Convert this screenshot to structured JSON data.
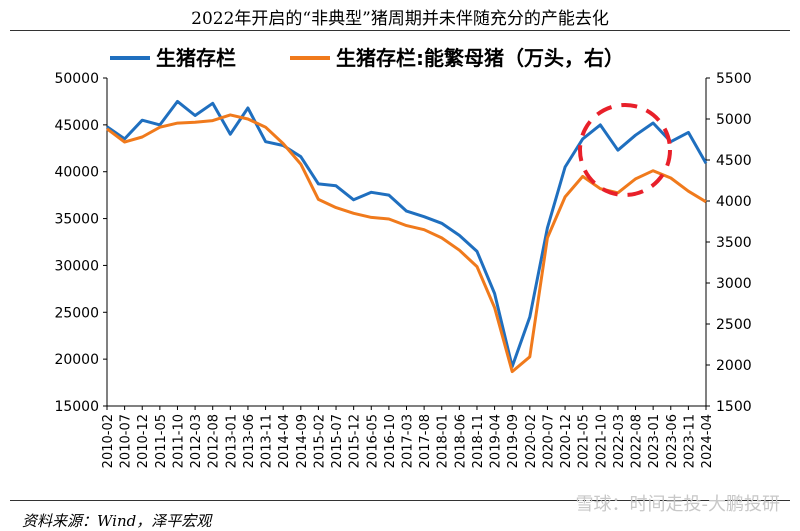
{
  "title": "2022年开启的“非典型”猪周期并未伴随充分的产能去化",
  "source": "资料来源：Wind，泽平宏观",
  "watermark": "雪球：时间走投-大鹏投研",
  "chart_data": {
    "type": "line",
    "left_axis": {
      "ylim": [
        15000,
        50000
      ],
      "ticks": [
        15000,
        20000,
        25000,
        30000,
        35000,
        40000,
        45000,
        50000
      ]
    },
    "right_axis": {
      "ylim": [
        1500,
        5500
      ],
      "ticks": [
        1500,
        2000,
        2500,
        3000,
        3500,
        4000,
        4500,
        5000,
        5500
      ]
    },
    "x_tick_labels": [
      "2010-02",
      "2010-07",
      "2010-12",
      "2011-05",
      "2011-10",
      "2012-03",
      "2012-08",
      "2013-01",
      "2013-06",
      "2013-11",
      "2014-04",
      "2014-09",
      "2015-02",
      "2015-07",
      "2015-12",
      "2016-05",
      "2016-10",
      "2017-03",
      "2017-08",
      "2018-01",
      "2018-06",
      "2018-11",
      "2019-04",
      "2019-09",
      "2020-02",
      "2020-07",
      "2020-12",
      "2021-05",
      "2021-10",
      "2022-03",
      "2022-08",
      "2023-01",
      "2023-06",
      "2023-11",
      "2024-04"
    ],
    "colors": {
      "blue": "#1f6fbf",
      "orange": "#f07a1c",
      "circle": "#e8202a"
    },
    "series": [
      {
        "name": "生猪存栏",
        "axis": "left",
        "color": "#1f6fbf",
        "x": [
          "2010-02",
          "2010-07",
          "2010-12",
          "2011-05",
          "2011-10",
          "2012-03",
          "2012-08",
          "2013-01",
          "2013-06",
          "2013-11",
          "2014-04",
          "2014-09",
          "2015-02",
          "2015-07",
          "2015-12",
          "2016-05",
          "2016-10",
          "2017-03",
          "2017-08",
          "2018-01",
          "2018-06",
          "2018-11",
          "2019-04",
          "2019-09",
          "2020-02",
          "2020-07",
          "2020-12",
          "2021-05",
          "2021-10",
          "2022-03",
          "2022-08",
          "2023-01",
          "2023-06",
          "2023-11",
          "2024-04"
        ],
        "values": [
          44800,
          43500,
          45500,
          45000,
          47500,
          46000,
          47300,
          44000,
          46800,
          43200,
          42800,
          41600,
          38700,
          38500,
          37000,
          37800,
          37500,
          35800,
          35200,
          34500,
          33200,
          31500,
          27000,
          19200,
          24500,
          34000,
          40500,
          43500,
          45000,
          42300,
          43900,
          45200,
          43200,
          44200,
          40900
        ]
      },
      {
        "name": "生猪存栏:能繁母猪（万头，右）",
        "axis": "right",
        "color": "#f07a1c",
        "x": [
          "2010-02",
          "2010-07",
          "2010-12",
          "2011-05",
          "2011-10",
          "2012-03",
          "2012-08",
          "2013-01",
          "2013-06",
          "2013-11",
          "2014-04",
          "2014-09",
          "2015-02",
          "2015-07",
          "2015-12",
          "2016-05",
          "2016-10",
          "2017-03",
          "2017-08",
          "2018-01",
          "2018-06",
          "2018-11",
          "2019-04",
          "2019-09",
          "2020-02",
          "2020-07",
          "2020-12",
          "2021-05",
          "2021-10",
          "2022-03",
          "2022-08",
          "2023-01",
          "2023-06",
          "2023-11",
          "2024-04"
        ],
        "values": [
          4880,
          4720,
          4780,
          4900,
          4950,
          4960,
          4980,
          5050,
          5000,
          4900,
          4700,
          4450,
          4020,
          3920,
          3850,
          3800,
          3780,
          3700,
          3650,
          3550,
          3400,
          3200,
          2700,
          1920,
          2100,
          3550,
          4050,
          4300,
          4150,
          4100,
          4270,
          4370,
          4280,
          4120,
          3990
        ]
      }
    ],
    "legend": {
      "position": "top"
    }
  }
}
